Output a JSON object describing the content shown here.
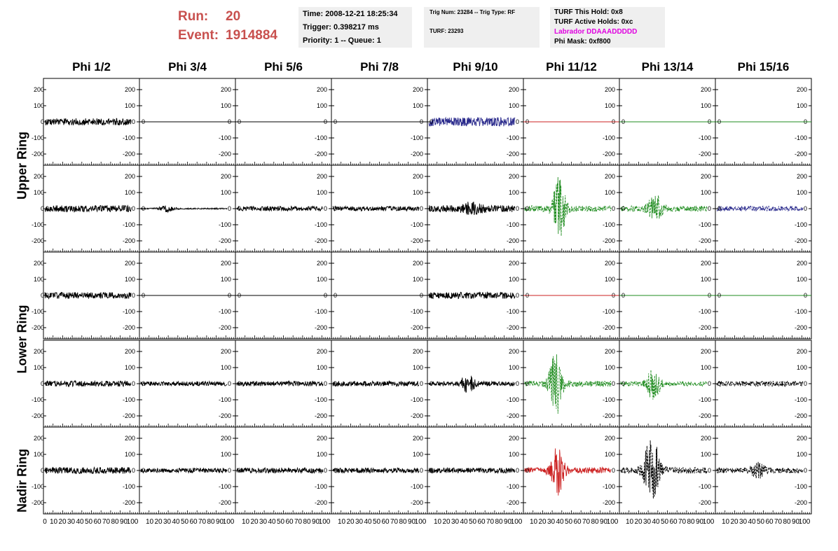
{
  "run_info": {
    "run_label": "Run:",
    "run_value": "20",
    "event_label": "Event:",
    "event_value": "1914884"
  },
  "time_box": {
    "time": "Time: 2008-12-21 18:25:34",
    "trigger": "Trigger: 0.398217 ms",
    "priority": "Priority: 1 -- Queue: 1"
  },
  "trig_box": {
    "trig": "Trig Num: 23284 -- Trig Type: RF",
    "turf": "TURF: 23293"
  },
  "turf_box": {
    "this_hold": "TURF This Hold: 0x8",
    "active_holds": "TURF Active Holds: 0xc",
    "labrador": "Labrador DDAAADDDDD",
    "phi_mask": "Phi Mask: 0xf800"
  },
  "column_headers": [
    "Phi 1/2",
    "Phi 3/4",
    "Phi 5/6",
    "Phi 7/8",
    "Phi 9/10",
    "Phi 11/12",
    "Phi 13/14",
    "Phi 15/16"
  ],
  "row_labels": {
    "upper": "Upper Ring",
    "lower": "Lower Ring",
    "nadir": "Nadir Ring"
  },
  "y_ticks": [
    "200",
    "100",
    "0",
    "-100",
    "-200"
  ],
  "x_tick_labels": [
    "0",
    "10",
    "20",
    "30",
    "40",
    "50",
    "60",
    "70",
    "80",
    "90",
    "100"
  ],
  "colors": {
    "run_text": "#c8504e",
    "black": "#000000",
    "blue": "#2a2a8c",
    "red": "#cc2020",
    "green": "#1f8c1f",
    "magenta": "#e000e0"
  },
  "panels": [
    [
      {
        "c": "black",
        "a": 22,
        "d": false
      },
      {
        "c": "black",
        "a": 0,
        "d": false
      },
      {
        "c": "black",
        "a": 0,
        "d": false
      },
      {
        "c": "black",
        "a": 0,
        "d": false
      },
      {
        "c": "blue",
        "a": 28,
        "d": false
      },
      {
        "c": "red",
        "a": 0,
        "d": false
      },
      {
        "c": "green",
        "a": 0,
        "d": false
      },
      {
        "c": "green",
        "a": 0,
        "d": false
      }
    ],
    [
      {
        "c": "black",
        "a": 20,
        "d": false
      },
      {
        "c": "black",
        "a": 4,
        "d": false,
        "burst": [
          30,
          0.12,
          18
        ]
      },
      {
        "c": "black",
        "a": 14,
        "d": false
      },
      {
        "c": "black",
        "a": 14,
        "d": false
      },
      {
        "c": "black",
        "a": 22,
        "d": false,
        "burst": [
          50,
          0.15,
          25
        ]
      },
      {
        "c": "green",
        "a": 18,
        "d": true,
        "burst": [
          40,
          0.1,
          190
        ]
      },
      {
        "c": "green",
        "a": 18,
        "d": true,
        "burst": [
          40,
          0.12,
          75
        ]
      },
      {
        "c": "blue",
        "a": 16,
        "d": true
      }
    ],
    [
      {
        "c": "black",
        "a": 20,
        "d": false
      },
      {
        "c": "black",
        "a": 0,
        "d": false
      },
      {
        "c": "black",
        "a": 0,
        "d": false
      },
      {
        "c": "black",
        "a": 0,
        "d": false
      },
      {
        "c": "black",
        "a": 20,
        "d": false
      },
      {
        "c": "red",
        "a": 0,
        "d": false
      },
      {
        "c": "green",
        "a": 0,
        "d": false
      },
      {
        "c": "green",
        "a": 0,
        "d": false
      }
    ],
    [
      {
        "c": "black",
        "a": 18,
        "d": false
      },
      {
        "c": "black",
        "a": 14,
        "d": false
      },
      {
        "c": "black",
        "a": 16,
        "d": false
      },
      {
        "c": "black",
        "a": 16,
        "d": false
      },
      {
        "c": "black",
        "a": 14,
        "d": false,
        "burst": [
          45,
          0.12,
          45
        ]
      },
      {
        "c": "green",
        "a": 18,
        "d": true,
        "burst": [
          36,
          0.1,
          200
        ]
      },
      {
        "c": "green",
        "a": 14,
        "d": true,
        "burst": [
          38,
          0.1,
          100
        ]
      },
      {
        "c": "black",
        "a": 16,
        "d": true
      }
    ],
    [
      {
        "c": "black",
        "a": 20,
        "d": false
      },
      {
        "c": "black",
        "a": 14,
        "d": false
      },
      {
        "c": "black",
        "a": 16,
        "d": false
      },
      {
        "c": "black",
        "a": 16,
        "d": false
      },
      {
        "c": "black",
        "a": 16,
        "d": false
      },
      {
        "c": "red",
        "a": 20,
        "d": false,
        "burst": [
          38,
          0.1,
          140
        ]
      },
      {
        "c": "black",
        "a": 20,
        "d": true,
        "burst": [
          36,
          0.12,
          210
        ]
      },
      {
        "c": "black",
        "a": 16,
        "d": true,
        "burst": [
          48,
          0.12,
          40
        ]
      }
    ]
  ]
}
